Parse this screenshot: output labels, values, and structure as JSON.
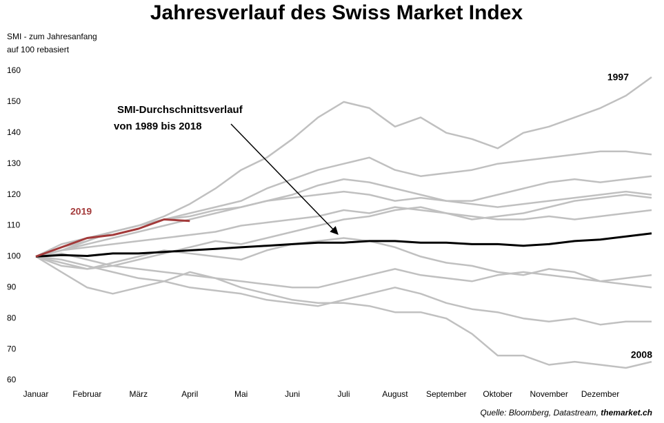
{
  "chart_data": {
    "type": "line",
    "title": "Jahresverlauf des Swiss Market Index",
    "y_label": [
      "SMI - zum Jahresanfang",
      "auf 100 rebasiert"
    ],
    "annotation": [
      "SMI-Durchschnittsverlauf",
      "von 1989 bis 2018"
    ],
    "source": "Quelle: Bloomberg, Datastream,",
    "source_site": "themarket.ch",
    "categories": [
      "Januar",
      null,
      "Februar",
      null,
      "März",
      null,
      "April",
      null,
      "Mai",
      null,
      "Juni",
      null,
      "Juli",
      null,
      "August",
      null,
      "September",
      null,
      "Oktober",
      null,
      "November",
      null,
      "Dezember",
      null,
      null
    ],
    "ylim": [
      60,
      160
    ],
    "yticks": [
      60,
      70,
      80,
      90,
      100,
      110,
      120,
      130,
      140,
      150,
      160
    ],
    "grid": false,
    "series": [
      {
        "name": "1997",
        "color": "#c0c0c0",
        "values": [
          100,
          102,
          105,
          108,
          110,
          113,
          117,
          122,
          128,
          132,
          138,
          145,
          150,
          148,
          142,
          145,
          140,
          138,
          135,
          140,
          142,
          145,
          148,
          152,
          158
        ]
      },
      {
        "name": "2008",
        "color": "#c0c0c0",
        "values": [
          100,
          95,
          90,
          88,
          90,
          92,
          95,
          93,
          90,
          88,
          86,
          85,
          85,
          84,
          82,
          82,
          80,
          75,
          68,
          68,
          65,
          66,
          65,
          64,
          66
        ]
      },
      {
        "color": "#c0c0c0",
        "values": [
          100,
          102,
          104,
          106,
          108,
          110,
          112,
          114,
          116,
          118,
          119,
          120,
          121,
          120,
          118,
          119,
          118,
          117,
          116,
          117,
          118,
          119,
          120,
          121,
          120
        ]
      },
      {
        "color": "#c0c0c0",
        "values": [
          100,
          98,
          96,
          97,
          99,
          101,
          103,
          105,
          104,
          106,
          108,
          110,
          112,
          113,
          115,
          116,
          114,
          112,
          113,
          114,
          116,
          118,
          119,
          120,
          119
        ]
      },
      {
        "color": "#c0c0c0",
        "values": [
          100,
          101,
          99,
          97,
          96,
          95,
          94,
          93,
          92,
          91,
          90,
          90,
          92,
          94,
          96,
          94,
          93,
          92,
          94,
          95,
          94,
          93,
          92,
          93,
          94
        ]
      },
      {
        "color": "#c0c0c0",
        "values": [
          100,
          99,
          97,
          95,
          93,
          92,
          90,
          89,
          88,
          86,
          85,
          84,
          86,
          88,
          90,
          88,
          85,
          83,
          82,
          80,
          79,
          80,
          78,
          79,
          79
        ]
      },
      {
        "color": "#c0c0c0",
        "values": [
          100,
          103,
          105,
          108,
          110,
          112,
          114,
          116,
          118,
          122,
          125,
          128,
          130,
          132,
          128,
          126,
          127,
          128,
          130,
          131,
          132,
          133,
          134,
          134,
          133
        ]
      },
      {
        "color": "#c0c0c0",
        "values": [
          100,
          97,
          96,
          98,
          100,
          102,
          101,
          100,
          99,
          102,
          104,
          105,
          106,
          105,
          103,
          100,
          98,
          97,
          95,
          94,
          96,
          95,
          92,
          91,
          90
        ]
      },
      {
        "color": "#c0c0c0",
        "values": [
          100,
          104,
          106,
          108,
          110,
          112,
          113,
          115,
          116,
          118,
          120,
          123,
          125,
          124,
          122,
          120,
          118,
          118,
          120,
          122,
          124,
          125,
          124,
          125,
          126
        ]
      },
      {
        "color": "#c0c0c0",
        "values": [
          100,
          102,
          103,
          104,
          105,
          106,
          107,
          108,
          110,
          111,
          112,
          113,
          115,
          114,
          116,
          115,
          114,
          113,
          112,
          112,
          113,
          112,
          113,
          114,
          115
        ]
      },
      {
        "color": "#000000",
        "values": [
          100,
          100.5,
          100.2,
          101,
          101,
          101.5,
          102,
          102.5,
          103,
          103.5,
          104,
          104.5,
          104.5,
          105,
          105,
          104.5,
          104.5,
          104,
          104,
          103.5,
          104,
          105,
          105.5,
          106.5,
          107.5
        ]
      },
      {
        "name": "2019",
        "color": "#a33a3a",
        "values": [
          100,
          103,
          106,
          107,
          109,
          112,
          111.5,
          null,
          null,
          null,
          null,
          null,
          null,
          null,
          null,
          null,
          null,
          null,
          null,
          null,
          null,
          null,
          null,
          null,
          null
        ]
      }
    ]
  }
}
